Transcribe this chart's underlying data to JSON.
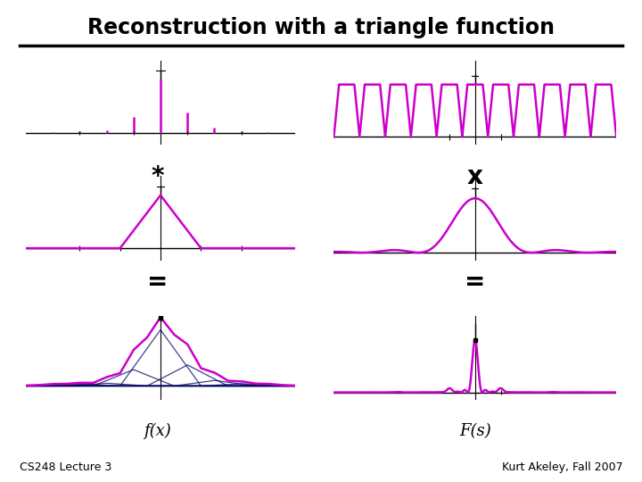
{
  "title": "Reconstruction with a triangle function",
  "footer_left": "CS248 Lecture 3",
  "footer_right": "Kurt Akeley, Fall 2007",
  "label_fx": "f(x)",
  "label_Fs": "F(s)",
  "operator_conv": "*",
  "operator_mult": "x",
  "operator_eq1": "=",
  "operator_eq2": "=",
  "magenta": "#cc00cc",
  "dark_navy": "#000066",
  "black": "#000000",
  "bg_color": "#ffffff",
  "title_fontsize": 17,
  "footer_fontsize": 9,
  "label_fontsize": 13,
  "op_fontsize": 20
}
